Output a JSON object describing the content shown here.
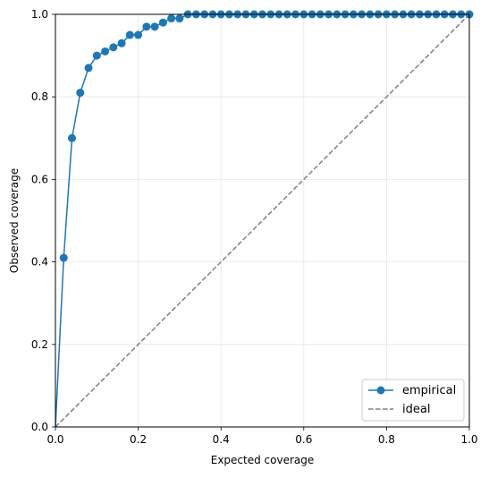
{
  "chart_data": {
    "type": "line",
    "xlabel": "Expected coverage",
    "ylabel": "Observed coverage",
    "xlim": [
      0.0,
      1.0
    ],
    "ylim": [
      0.0,
      1.0
    ],
    "xticks": [
      "0.0",
      "0.2",
      "0.4",
      "0.6",
      "0.8",
      "1.0"
    ],
    "yticks": [
      "0.0",
      "0.2",
      "0.4",
      "0.6",
      "0.8",
      "1.0"
    ],
    "grid": true,
    "legend_position": "lower-right",
    "series": [
      {
        "name": "empirical",
        "style": "solid line with circle markers",
        "color": "#1f77b4",
        "x": [
          0.0,
          0.02,
          0.04,
          0.06,
          0.08,
          0.1,
          0.12,
          0.14,
          0.16,
          0.18,
          0.2,
          0.22,
          0.24,
          0.26,
          0.28,
          0.3,
          0.32,
          0.34,
          0.36,
          0.38,
          0.4,
          0.42,
          0.44,
          0.46,
          0.48,
          0.5,
          0.52,
          0.54,
          0.56,
          0.58,
          0.6,
          0.62,
          0.64,
          0.66,
          0.68,
          0.7,
          0.72,
          0.74,
          0.76,
          0.78,
          0.8,
          0.82,
          0.84,
          0.86,
          0.88,
          0.9,
          0.92,
          0.94,
          0.96,
          0.98,
          1.0
        ],
        "y": [
          0.0,
          0.41,
          0.7,
          0.81,
          0.87,
          0.9,
          0.91,
          0.92,
          0.93,
          0.95,
          0.95,
          0.97,
          0.97,
          0.98,
          0.99,
          0.99,
          1.0,
          1.0,
          1.0,
          1.0,
          1.0,
          1.0,
          1.0,
          1.0,
          1.0,
          1.0,
          1.0,
          1.0,
          1.0,
          1.0,
          1.0,
          1.0,
          1.0,
          1.0,
          1.0,
          1.0,
          1.0,
          1.0,
          1.0,
          1.0,
          1.0,
          1.0,
          1.0,
          1.0,
          1.0,
          1.0,
          1.0,
          1.0,
          1.0,
          1.0,
          1.0
        ],
        "marker_x": [
          0.02,
          0.04,
          0.06,
          0.08,
          0.1,
          0.12,
          0.14,
          0.16,
          0.18,
          0.2,
          0.22,
          0.24,
          0.26,
          0.28,
          0.3,
          0.32,
          0.34,
          0.36,
          0.38,
          0.4,
          0.42,
          0.44,
          0.46,
          0.48,
          0.5,
          0.52,
          0.54,
          0.56,
          0.58,
          0.6,
          0.62,
          0.64,
          0.66,
          0.68,
          0.7,
          0.72,
          0.74,
          0.76,
          0.78,
          0.8,
          0.82,
          0.84,
          0.86,
          0.88,
          0.9,
          0.92,
          0.94,
          0.96,
          0.98,
          1.0
        ],
        "marker_y": [
          0.41,
          0.7,
          0.81,
          0.87,
          0.9,
          0.91,
          0.92,
          0.93,
          0.95,
          0.95,
          0.97,
          0.97,
          0.98,
          0.99,
          0.99,
          1.0,
          1.0,
          1.0,
          1.0,
          1.0,
          1.0,
          1.0,
          1.0,
          1.0,
          1.0,
          1.0,
          1.0,
          1.0,
          1.0,
          1.0,
          1.0,
          1.0,
          1.0,
          1.0,
          1.0,
          1.0,
          1.0,
          1.0,
          1.0,
          1.0,
          1.0,
          1.0,
          1.0,
          1.0,
          1.0,
          1.0,
          1.0,
          1.0,
          1.0,
          1.0
        ]
      },
      {
        "name": "ideal",
        "style": "dashed line",
        "color": "#808080",
        "x": [
          0.0,
          1.0
        ],
        "y": [
          0.0,
          1.0
        ]
      }
    ]
  }
}
